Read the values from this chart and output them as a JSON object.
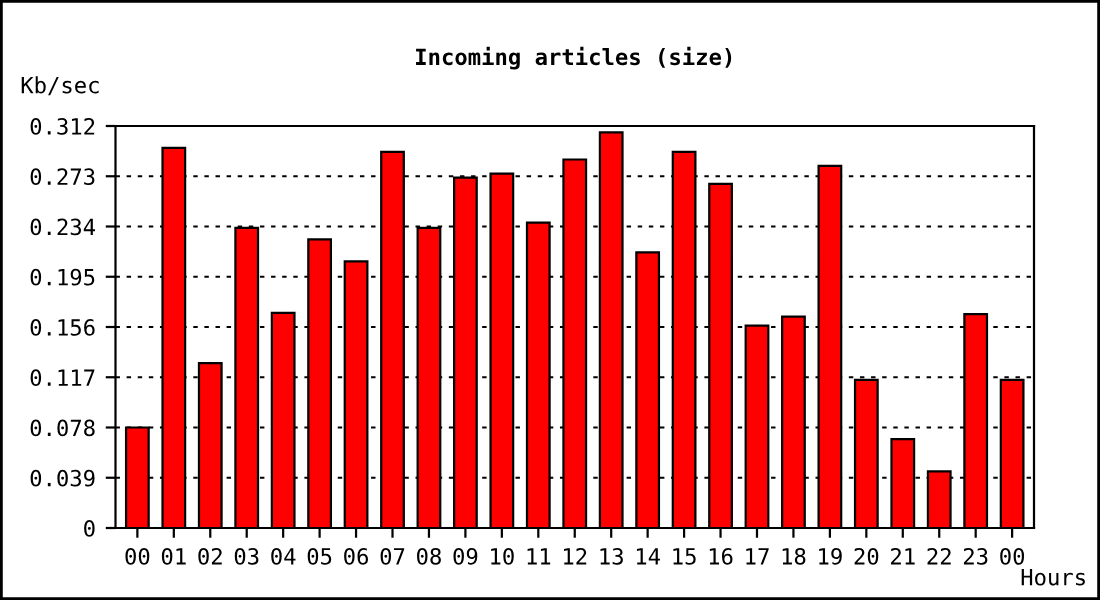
{
  "chart_data": {
    "type": "bar",
    "title": "Incoming articles (size)",
    "xlabel": "Hours",
    "ylabel": "Kb/sec",
    "categories": [
      "00",
      "01",
      "02",
      "03",
      "04",
      "05",
      "06",
      "07",
      "08",
      "09",
      "10",
      "11",
      "12",
      "13",
      "14",
      "15",
      "16",
      "17",
      "18",
      "19",
      "20",
      "21",
      "22",
      "23",
      "00"
    ],
    "values": [
      0.078,
      0.295,
      0.128,
      0.233,
      0.167,
      0.224,
      0.207,
      0.292,
      0.233,
      0.272,
      0.275,
      0.237,
      0.286,
      0.307,
      0.214,
      0.292,
      0.267,
      0.157,
      0.164,
      0.281,
      0.115,
      0.069,
      0.044,
      0.166,
      0.115
    ],
    "color": "#ff0000",
    "ylim": [
      0,
      0.312
    ],
    "yticks": [
      0,
      0.039,
      0.078,
      0.117,
      0.156,
      0.195,
      0.234,
      0.273,
      0.312
    ],
    "grid": "y"
  }
}
